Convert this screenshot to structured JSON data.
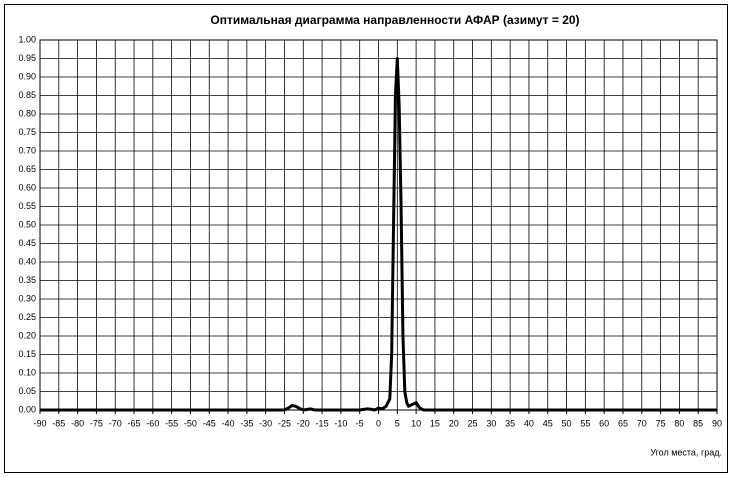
{
  "chart_data": {
    "type": "line",
    "title": "Оптимальная диаграмма направленности АФАР (азимут = 20)",
    "x_label": "Угол места, град.",
    "x": [
      -90,
      -30,
      -25,
      -24,
      -23,
      -22,
      -21,
      -20,
      -18,
      -17,
      -16,
      -5,
      -3,
      -2,
      -1,
      0,
      1,
      2,
      3,
      3.5,
      4,
      4.5,
      5,
      5.5,
      6,
      6.5,
      7,
      7.5,
      8,
      9,
      10,
      11,
      12,
      90
    ],
    "series": [
      {
        "color": "#000000",
        "values": [
          0,
          0,
          0,
          0.005,
          0.012,
          0.01,
          0.004,
          0,
          0.003,
          0,
          0,
          0,
          0.003,
          0.002,
          0,
          0.005,
          0.003,
          0.01,
          0.03,
          0.15,
          0.5,
          0.85,
          0.95,
          0.82,
          0.55,
          0.2,
          0.05,
          0.02,
          0.01,
          0.015,
          0.02,
          0.005,
          0,
          0
        ]
      }
    ],
    "xlim": [
      -90,
      90
    ],
    "xticks": [
      -90,
      -85,
      -80,
      -75,
      -70,
      -65,
      -60,
      -55,
      -50,
      -45,
      -40,
      -35,
      -30,
      -25,
      -20,
      -15,
      -10,
      -5,
      0,
      5,
      10,
      15,
      20,
      25,
      30,
      35,
      40,
      45,
      50,
      55,
      60,
      65,
      70,
      75,
      80,
      85,
      90
    ],
    "ylim": [
      0,
      1
    ],
    "yticks": [
      {
        "value": 0,
        "label": "0.00"
      },
      {
        "value": 0.05,
        "label": "0.05"
      },
      {
        "value": 0.1,
        "label": "0.10"
      },
      {
        "value": 0.15,
        "label": "0.15"
      },
      {
        "value": 0.2,
        "label": "0.20"
      },
      {
        "value": 0.25,
        "label": "0.25"
      },
      {
        "value": 0.3,
        "label": "0.30"
      },
      {
        "value": 0.35,
        "label": "0.35"
      },
      {
        "value": 0.4,
        "label": "0.40"
      },
      {
        "value": 0.45,
        "label": "0.45"
      },
      {
        "value": 0.5,
        "label": "0.50"
      },
      {
        "value": 0.55,
        "label": "0.55"
      },
      {
        "value": 0.6,
        "label": "0.60"
      },
      {
        "value": 0.65,
        "label": "0.65"
      },
      {
        "value": 0.7,
        "label": "0.70"
      },
      {
        "value": 0.75,
        "label": "0.75"
      },
      {
        "value": 0.8,
        "label": "0.80"
      },
      {
        "value": 0.85,
        "label": "0.85"
      },
      {
        "value": 0.9,
        "label": "0.90"
      },
      {
        "value": 0.95,
        "label": "0.95"
      },
      {
        "value": 1,
        "label": "1.00"
      }
    ],
    "grid": true
  }
}
